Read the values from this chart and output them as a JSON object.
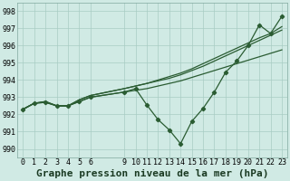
{
  "title": "Graphe pression niveau de la mer (hPa)",
  "bg_color": "#d0eae4",
  "grid_color": "#a8ccc4",
  "line_color": "#2a5c32",
  "xlim": [
    -0.5,
    23.5
  ],
  "ylim": [
    989.5,
    998.5
  ],
  "yticks": [
    990,
    991,
    992,
    993,
    994,
    995,
    996,
    997,
    998
  ],
  "xticks": [
    0,
    1,
    2,
    3,
    4,
    5,
    6,
    9,
    10,
    11,
    12,
    13,
    14,
    15,
    16,
    17,
    18,
    19,
    20,
    21,
    22,
    23
  ],
  "series": [
    {
      "x": [
        0,
        1,
        2,
        3,
        4,
        5,
        6,
        9,
        10,
        11,
        12,
        13,
        14,
        15,
        16,
        17,
        18,
        19,
        20,
        21,
        22,
        23
      ],
      "y": [
        992.3,
        992.65,
        992.7,
        992.5,
        992.5,
        992.75,
        993.0,
        993.3,
        993.4,
        993.5,
        993.65,
        993.8,
        993.95,
        994.15,
        994.35,
        994.55,
        994.75,
        994.95,
        995.15,
        995.35,
        995.55,
        995.75
      ],
      "marker": false
    },
    {
      "x": [
        0,
        1,
        2,
        3,
        4,
        5,
        6,
        9,
        10,
        11,
        12,
        13,
        14,
        15,
        16,
        17,
        18,
        19,
        20,
        21,
        22,
        23
      ],
      "y": [
        992.3,
        992.65,
        992.75,
        992.5,
        992.5,
        992.85,
        993.1,
        993.5,
        993.65,
        993.8,
        994.0,
        994.2,
        994.4,
        994.65,
        994.95,
        995.25,
        995.55,
        995.85,
        996.15,
        996.45,
        996.7,
        997.1
      ],
      "marker": false
    },
    {
      "x": [
        0,
        1,
        2,
        3,
        4,
        5,
        6,
        9,
        10,
        11,
        12,
        13,
        14,
        15,
        16,
        17,
        18,
        19,
        20,
        21,
        22,
        23
      ],
      "y": [
        992.3,
        992.65,
        992.75,
        992.5,
        992.5,
        992.85,
        993.1,
        993.5,
        993.65,
        993.8,
        993.95,
        994.1,
        994.3,
        994.55,
        994.8,
        995.1,
        995.4,
        995.7,
        996.0,
        996.3,
        996.6,
        996.9
      ],
      "marker": false
    },
    {
      "x": [
        0,
        1,
        2,
        3,
        4,
        5,
        6,
        9,
        10,
        11,
        12,
        13,
        14,
        15,
        16,
        17,
        18,
        19,
        20,
        21,
        22,
        23
      ],
      "y": [
        992.3,
        992.65,
        992.7,
        992.5,
        992.5,
        992.75,
        993.0,
        993.3,
        993.5,
        992.55,
        991.7,
        991.1,
        990.3,
        991.6,
        992.35,
        993.3,
        994.45,
        995.1,
        996.0,
        997.2,
        996.7,
        997.7
      ],
      "marker": true
    }
  ],
  "marker_style": "D",
  "marker_size": 2.2,
  "lw": 0.9,
  "title_fontsize": 8,
  "tick_fontsize": 6
}
